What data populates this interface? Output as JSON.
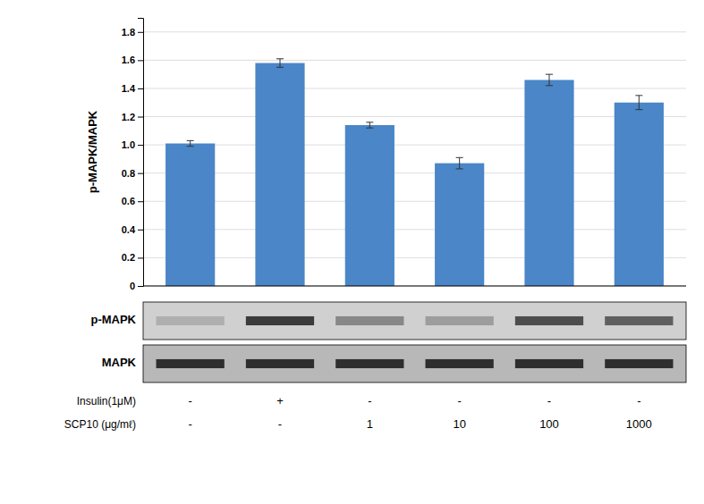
{
  "chart_data": {
    "type": "bar",
    "categories": [
      null,
      null,
      null,
      null,
      null,
      null
    ],
    "values": [
      1.01,
      1.58,
      1.14,
      0.87,
      1.46,
      1.3
    ],
    "errors": [
      0.02,
      0.03,
      0.02,
      0.04,
      0.04,
      0.05
    ],
    "color": "#4A86C8",
    "ylabel": "p-MAPK/MAPK",
    "ylim": [
      0,
      1.9
    ],
    "yticks": [
      0,
      0.2,
      0.4,
      0.6,
      0.8,
      {
        "value": 1.0,
        "label": "1.0"
      },
      1.2,
      1.4,
      1.6,
      1.8
    ],
    "grid": true,
    "tick_labels": "y",
    "blots": [
      {
        "label": "p-MAPK",
        "intensities": [
          0.18,
          0.82,
          0.4,
          0.28,
          0.72,
          0.62
        ]
      },
      {
        "label": "MAPK",
        "intensities": [
          0.88,
          0.88,
          0.88,
          0.88,
          0.88,
          0.88
        ]
      }
    ],
    "annotation_rows": [
      {
        "label": "Insulin(1μM)",
        "values": [
          "-",
          "+",
          "-",
          "-",
          "-",
          "-"
        ]
      },
      {
        "label": "SCP10 (μg/mℓ)",
        "values": [
          "-",
          "-",
          "1",
          "10",
          "100",
          "1000"
        ]
      }
    ]
  }
}
